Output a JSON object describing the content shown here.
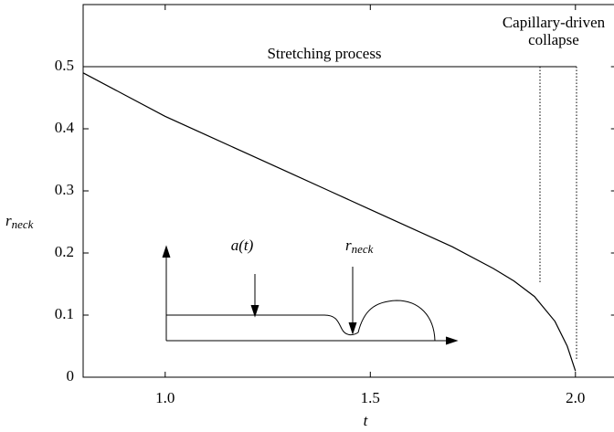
{
  "chart_data": {
    "type": "line",
    "xlabel": "t",
    "ylabel": "r",
    "ylabel_sub": "neck",
    "x": [
      0.8,
      0.9,
      1.0,
      1.1,
      1.2,
      1.3,
      1.4,
      1.5,
      1.6,
      1.7,
      1.8,
      1.85,
      1.9,
      1.95,
      1.98,
      2.0
    ],
    "series": [
      {
        "color": "#000000",
        "values": [
          0.49,
          0.455,
          0.42,
          0.39,
          0.36,
          0.33,
          0.3,
          0.27,
          0.24,
          0.21,
          0.175,
          0.155,
          0.13,
          0.09,
          0.05,
          0.01
        ]
      }
    ],
    "xlim": [
      0.8,
      2.1
    ],
    "ylim": [
      0,
      0.6
    ],
    "xticks": [
      {
        "value": 1,
        "label": "1.0"
      },
      {
        "value": 1.5,
        "label": "1.5"
      },
      {
        "value": 2,
        "label": "2.0"
      }
    ],
    "yticks": [
      0,
      0.1,
      0.2,
      0.3,
      0.4,
      0.5
    ],
    "grid": false,
    "annotations": {
      "stretching": "Stretching process",
      "collapse_1": "Capillary-driven",
      "collapse_2": "collapse",
      "inset_a": "a(t)",
      "inset_r": "r",
      "inset_r_sub": "neck"
    }
  }
}
